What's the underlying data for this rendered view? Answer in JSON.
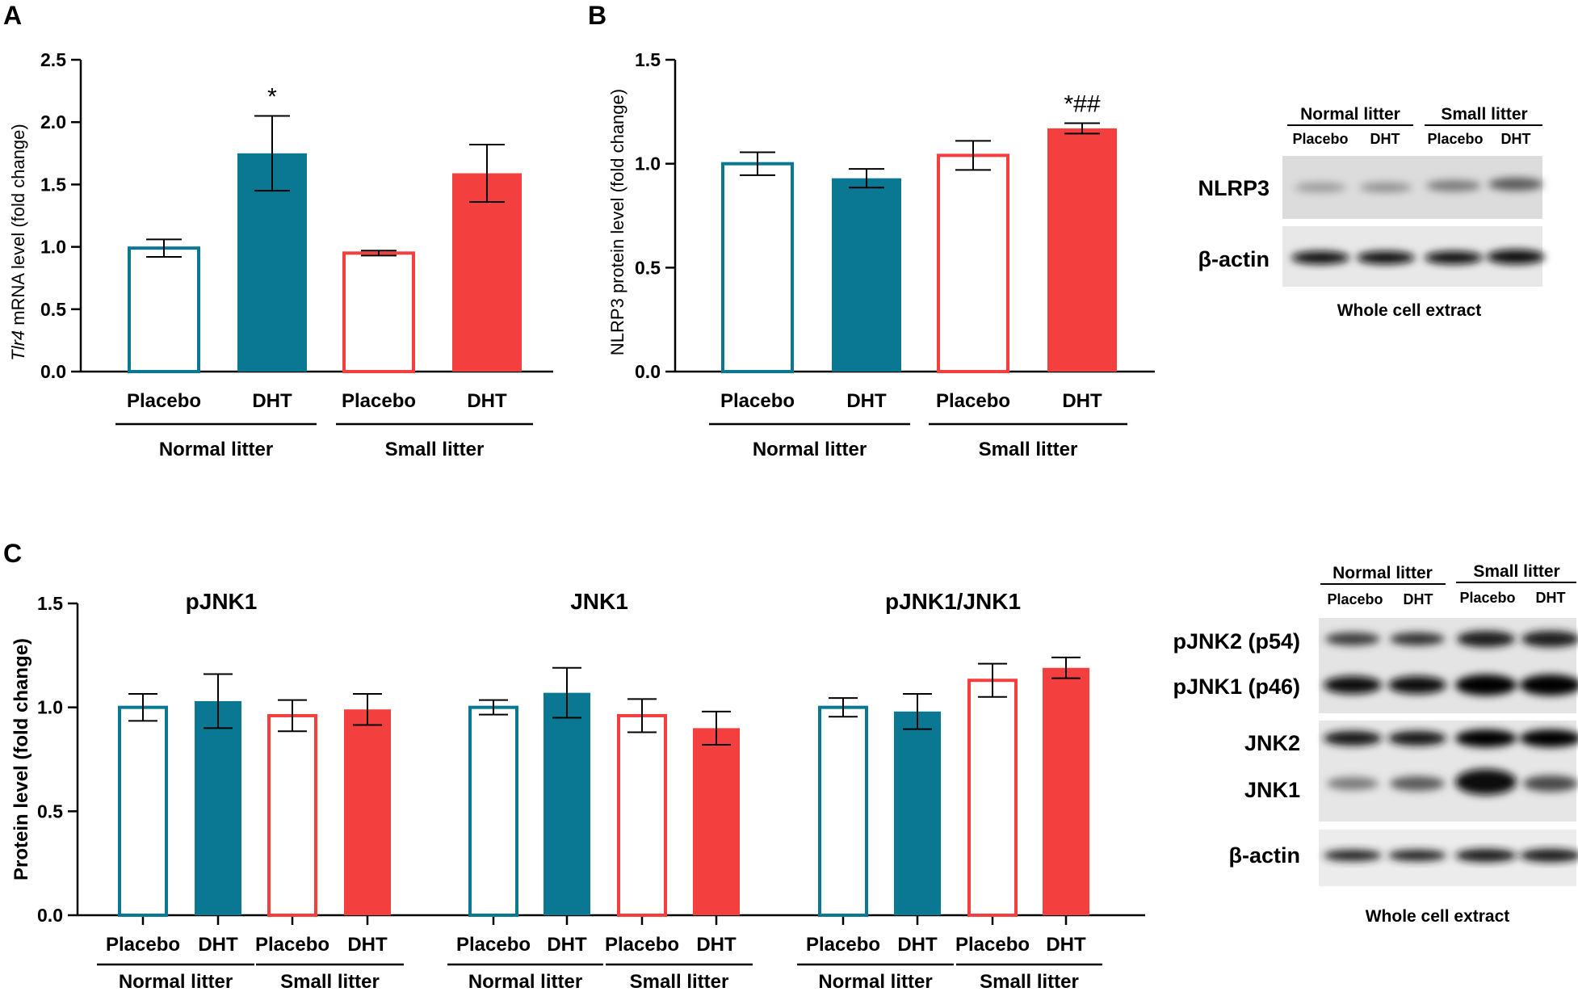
{
  "colors": {
    "normal": "#0a7892",
    "small": "#f43f3f",
    "axis": "#000000"
  },
  "panels": {
    "A": {
      "letter": "A"
    },
    "B": {
      "letter": "B",
      "blot": {
        "header_normal": "Normal litter",
        "header_small": "Small litter",
        "lanes": [
          "Placebo",
          "DHT",
          "Placebo",
          "DHT"
        ],
        "rows": [
          "NLRP3",
          "β-actin"
        ],
        "caption": "Whole cell extract"
      }
    },
    "C": {
      "letter": "C",
      "blot": {
        "header_normal": "Normal litter",
        "header_small": "Small litter",
        "lanes": [
          "Placebo",
          "DHT",
          "Placebo",
          "DHT"
        ],
        "rows": [
          "pJNK2 (p54)",
          "pJNK1 (p46)",
          "JNK2",
          "JNK1",
          "β-actin"
        ],
        "caption": "Whole cell extract"
      }
    }
  },
  "chart_data": [
    {
      "id": "A",
      "type": "bar",
      "title": "",
      "ylabel_italic": "Tlr4",
      "ylabel": "mRNA level (fold change)",
      "ylim": [
        0,
        2.5
      ],
      "yticks": [
        "0.0",
        "0.5",
        "1.0",
        "1.5",
        "2.0",
        "2.5"
      ],
      "categories": [
        "Placebo",
        "DHT",
        "Placebo",
        "DHT"
      ],
      "groups": [
        "Normal litter",
        "Small litter"
      ],
      "values": [
        0.99,
        1.75,
        0.95,
        1.59
      ],
      "errors": [
        0.07,
        0.3,
        0.02,
        0.23
      ],
      "fill": [
        "open",
        "filled",
        "open",
        "filled"
      ],
      "annotations": [
        "",
        "*",
        "",
        ""
      ]
    },
    {
      "id": "B",
      "type": "bar",
      "title": "",
      "ylabel": "NLRP3  protein level (fold change)",
      "ylim": [
        0,
        1.5
      ],
      "yticks": [
        "0.0",
        "0.5",
        "1.0",
        "1.5"
      ],
      "categories": [
        "Placebo",
        "DHT",
        "Placebo",
        "DHT"
      ],
      "groups": [
        "Normal litter",
        "Small litter"
      ],
      "values": [
        1.0,
        0.93,
        1.04,
        1.17
      ],
      "errors": [
        0.055,
        0.045,
        0.07,
        0.025
      ],
      "fill": [
        "open",
        "filled",
        "open",
        "filled"
      ],
      "annotations": [
        "",
        "",
        "",
        "*##"
      ]
    },
    {
      "id": "C",
      "type": "bar",
      "ylabel": "Protein level (fold change)",
      "ylim": [
        0,
        1.5
      ],
      "yticks": [
        "0.0",
        "0.5",
        "1.0",
        "1.5"
      ],
      "panels": [
        {
          "title": "pJNK1",
          "categories": [
            "Placebo",
            "DHT",
            "Placebo",
            "DHT"
          ],
          "groups": [
            "Normal litter",
            "Small litter"
          ],
          "values": [
            1.0,
            1.03,
            0.96,
            0.99
          ],
          "errors": [
            0.065,
            0.13,
            0.075,
            0.075
          ],
          "fill": [
            "open",
            "filled",
            "open",
            "filled"
          ]
        },
        {
          "title": "JNK1",
          "categories": [
            "Placebo",
            "DHT",
            "Placebo",
            "DHT"
          ],
          "groups": [
            "Normal litter",
            "Small litter"
          ],
          "values": [
            1.0,
            1.07,
            0.96,
            0.9
          ],
          "errors": [
            0.035,
            0.12,
            0.08,
            0.08
          ],
          "fill": [
            "open",
            "filled",
            "open",
            "filled"
          ]
        },
        {
          "title": "pJNK1/JNK1",
          "categories": [
            "Placebo",
            "DHT",
            "Placebo",
            "DHT"
          ],
          "groups": [
            "Normal litter",
            "Small litter"
          ],
          "values": [
            1.0,
            0.98,
            1.13,
            1.19
          ],
          "errors": [
            0.045,
            0.085,
            0.08,
            0.05
          ],
          "fill": [
            "open",
            "filled",
            "open",
            "filled"
          ]
        }
      ]
    }
  ]
}
